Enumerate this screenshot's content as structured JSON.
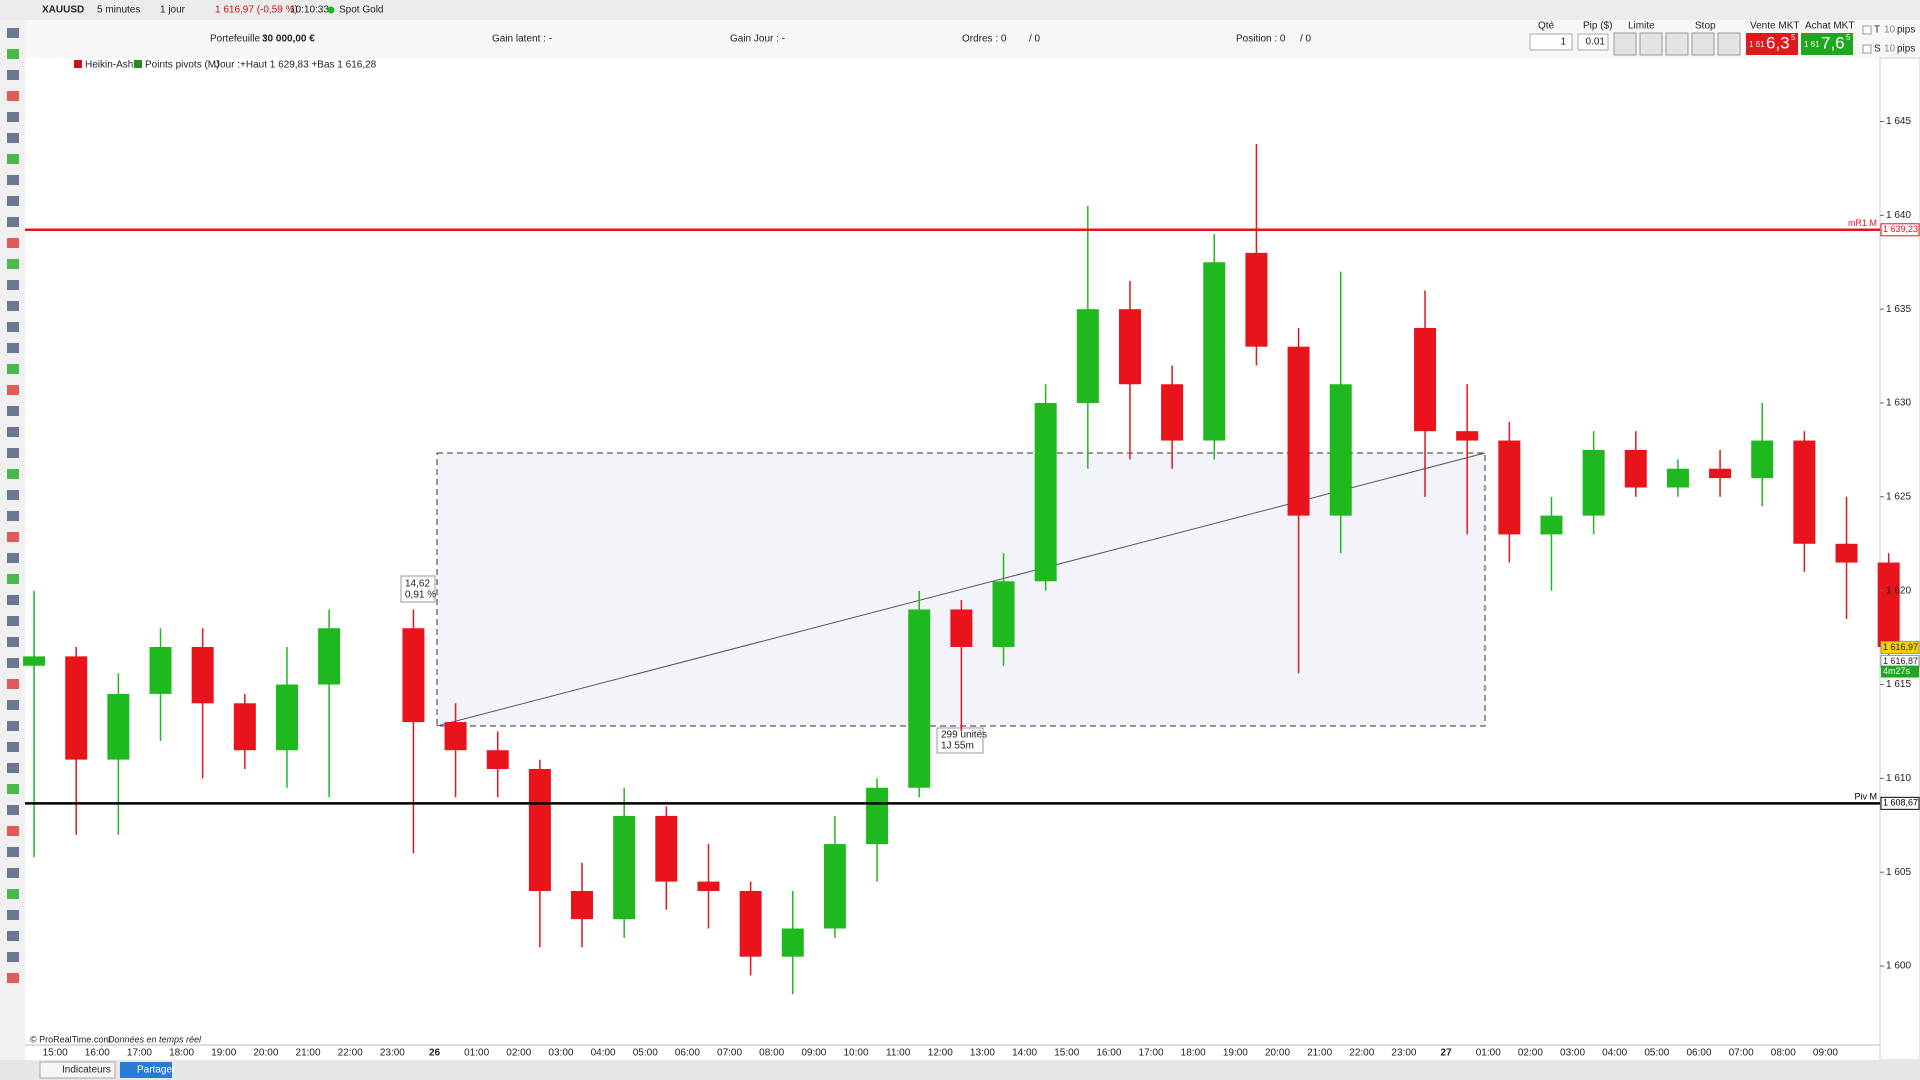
{
  "toolbar": {
    "symbol": "XAUUSD",
    "timeframe": "5 minutes",
    "period": "1 jour",
    "price": "1 616,97 (-0,59 %)",
    "time": "10:10:33",
    "instrument": "Spot Gold"
  },
  "account": {
    "portfolio_label": "Portefeuille :",
    "portfolio": "30 000,00 €",
    "unrealized": "Gain latent : -",
    "daily": "Gain Jour : -",
    "orders_label": "Ordres : 0",
    "orders_total": "/ 0",
    "position_label": "Position : 0",
    "position_total": "/ 0"
  },
  "order_panel": {
    "qty_label": "Qté",
    "qty": "1",
    "pip_label": "Pip ($)",
    "pip": "0.01",
    "limit_label": "Limite",
    "stop_label": "Stop",
    "sell_label": "Vente MKT",
    "sell_prefix": "1 61",
    "sell_main": "6,3",
    "sell_sup": "5",
    "buy_label": "Achat MKT",
    "buy_prefix": "1 61",
    "buy_main": "7,6",
    "buy_sup": "5",
    "t": "T",
    "s": "S",
    "t_pips": "10",
    "s_pips": "10",
    "t_unit": "pips",
    "s_unit": "pips"
  },
  "chart_header": {
    "style": "Heikin-Ashi",
    "indicator": "Points pivots (M)",
    "day_range": "Jour :+Haut 1 629,83 +Bas 1 616,28"
  },
  "chart_data": {
    "type": "candlestick",
    "categories": [
      null,
      "15:00",
      "16:00",
      "17:00",
      "18:00",
      "19:00",
      "20:00",
      "21:00",
      "22:00",
      "23:00",
      "26",
      "01:00",
      "02:00",
      "03:00",
      "04:00",
      "05:00",
      "06:00",
      "07:00",
      "08:00",
      "09:00",
      "10:00",
      "11:00",
      "12:00",
      "13:00",
      "14:00",
      "15:00",
      "16:00",
      "17:00",
      "18:00",
      "19:00",
      "20:00",
      "21:00",
      "22:00",
      "23:00",
      "27",
      "01:00",
      "02:00",
      "03:00",
      "04:00",
      "05:00",
      "06:00",
      "07:00",
      "08:00",
      "09:00",
      null
    ],
    "open": [
      1616,
      1616.5,
      1611,
      1614.5,
      1617,
      1614,
      1611.5,
      1615,
      null,
      1618,
      1613,
      1611.5,
      1610.5,
      1604,
      1602.5,
      1608,
      1604.5,
      1604,
      1600.5,
      1602,
      1606.5,
      1609.5,
      1619,
      1617,
      1620.5,
      1630,
      1635,
      1631,
      1628,
      1638,
      1633,
      1624,
      null,
      1634,
      1628.5,
      1628,
      1623,
      1624,
      1627.5,
      1625.5,
      1626.5,
      1626,
      1628,
      1622.5,
      1621.5
    ],
    "high": [
      1620,
      1617,
      1615.6,
      1618,
      1618,
      1614.5,
      1617,
      1619,
      null,
      1619,
      1614,
      1612.5,
      1611,
      1605.5,
      1609.5,
      1608.5,
      1606.5,
      1604.5,
      1604,
      1608,
      1610,
      1620,
      1619.5,
      1622,
      1631,
      1640.5,
      1636.5,
      1632,
      1639,
      1643.8,
      1634,
      1637,
      null,
      1636,
      1631,
      1629,
      1625,
      1628.5,
      1628.5,
      1627,
      1627.5,
      1630,
      1628.5,
      1625,
      1622
    ],
    "low": [
      1605.8,
      1607,
      1607,
      1612,
      1610,
      1610.5,
      1609.5,
      1609,
      null,
      1606,
      1609,
      1609,
      1601,
      1601,
      1601.5,
      1603,
      1602,
      1599.5,
      1598.5,
      1601.5,
      1604.5,
      1609,
      1612.5,
      1616,
      1620,
      1626.5,
      1627,
      1626.5,
      1627,
      1632,
      1615.6,
      1622,
      null,
      1625,
      1623,
      1621.5,
      1620,
      1623,
      1625,
      1625,
      1625,
      1624.5,
      1621,
      1618.5,
      1616.5
    ],
    "close": [
      1616.5,
      1611,
      1614.5,
      1617,
      1614,
      1611.5,
      1615,
      1618,
      null,
      1613,
      1611.5,
      1610.5,
      1604,
      1602.5,
      1608,
      1604.5,
      1604,
      1600.5,
      1602,
      1606.5,
      1609.5,
      1619,
      1617,
      1620.5,
      1630,
      1635,
      1631,
      1628,
      1637.5,
      1633,
      1624,
      1631,
      null,
      1628.5,
      1628,
      1623,
      1624,
      1627.5,
      1625.5,
      1626.5,
      1626,
      1628,
      1622.5,
      1621.5,
      1617
    ],
    "up_color": "#1fb81f",
    "down_color": "#e8131b",
    "ylim": [
      1595.9,
      1648.33
    ],
    "yticks": [
      {
        "value": 1600,
        "label": "1 600"
      },
      {
        "value": 1605,
        "label": "1 605"
      },
      {
        "value": 1610,
        "label": "1 610"
      },
      {
        "value": 1615,
        "label": "1 615"
      },
      {
        "value": 1620,
        "label": "1 620"
      },
      {
        "value": 1625,
        "label": "1 625"
      },
      {
        "value": 1630,
        "label": "1 630"
      },
      {
        "value": 1635,
        "label": "1 635"
      },
      {
        "value": 1640,
        "label": "1 640"
      },
      {
        "value": 1645,
        "label": "1 645"
      }
    ],
    "lines": [
      {
        "name": "mR1 M",
        "value": 1639.23,
        "label": "1 639,23",
        "color": "#e8131b"
      },
      {
        "name": "Piv M",
        "value": 1608.67,
        "label": "1 608,67",
        "color": "#000000"
      }
    ],
    "price_tags": [
      {
        "value": 1616.97,
        "label": "1 616,97",
        "color": "#f5d000"
      },
      {
        "value": 1616.87,
        "label": "1 616,87",
        "color": "#ffffff"
      }
    ],
    "countdown": "4m27s",
    "measure": {
      "change": "14,62",
      "percent": "0,91 %",
      "units": "299 unités",
      "duration": "1J 55m"
    }
  },
  "footer": {
    "copyright": "© ProRealTime.com",
    "feed": "Données en temps réel",
    "indicators": "Indicateurs",
    "share": "Partager"
  }
}
